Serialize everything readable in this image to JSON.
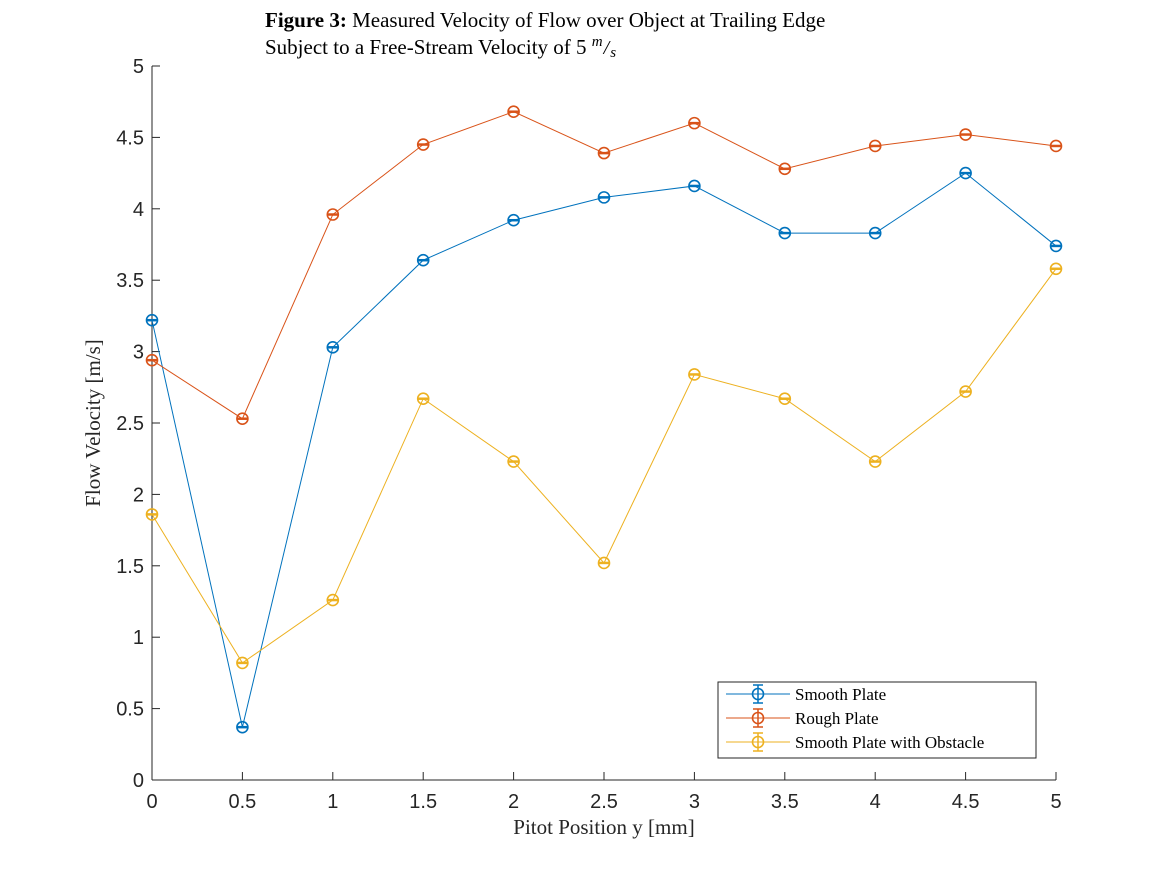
{
  "figure": {
    "title_bold": "Figure 3:",
    "title_rest": "Measured Velocity of Flow over Object at Trailing Edge",
    "subtitle": "Subject to a Free-Stream Velocity of 5",
    "subtitle_unit_num": "m",
    "subtitle_unit_den": "s"
  },
  "chart_data": {
    "type": "line",
    "xlabel": "Pitot Position y [mm]",
    "ylabel": "Flow Velocity [m/s]",
    "xlim": [
      0,
      5
    ],
    "ylim": [
      0,
      5
    ],
    "xticks": [
      "0",
      "0.5",
      "1",
      "1.5",
      "2",
      "2.5",
      "3",
      "3.5",
      "4",
      "4.5",
      "5"
    ],
    "yticks": [
      "0",
      "0.5",
      "1",
      "1.5",
      "2",
      "2.5",
      "3",
      "3.5",
      "4",
      "4.5",
      "5"
    ],
    "grid": false,
    "legend_position": "bottom-right",
    "marker": "circle",
    "error_bars": true,
    "x": [
      0,
      0.5,
      1,
      1.5,
      2,
      2.5,
      3,
      3.5,
      4,
      4.5,
      5
    ],
    "series": [
      {
        "name": "Smooth Plate",
        "color": "#0072BD",
        "values": [
          3.22,
          0.37,
          3.03,
          3.64,
          3.92,
          4.08,
          4.16,
          3.83,
          3.83,
          4.25,
          3.74
        ]
      },
      {
        "name": "Rough Plate",
        "color": "#D95319",
        "values": [
          2.94,
          2.53,
          3.96,
          4.45,
          4.68,
          4.39,
          4.6,
          4.28,
          4.44,
          4.52,
          4.44
        ]
      },
      {
        "name": "Smooth Plate with Obstacle",
        "color": "#EDB120",
        "values": [
          1.86,
          0.82,
          1.26,
          2.67,
          2.23,
          1.52,
          2.84,
          2.67,
          2.23,
          2.72,
          3.58
        ]
      }
    ]
  }
}
